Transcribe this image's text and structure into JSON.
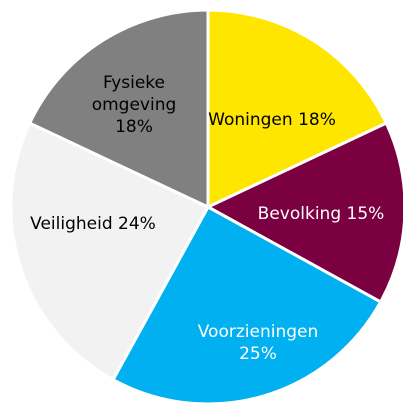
{
  "chart_data": {
    "type": "pie",
    "categories": [
      "Woningen",
      "Bevolking",
      "Voorzieningen",
      "Veiligheid",
      "Fysieke omgeving"
    ],
    "values": [
      18,
      15,
      25,
      24,
      18
    ],
    "value_labels": [
      "18%",
      "15%",
      "25%",
      "24%",
      "18%"
    ],
    "colors": [
      "#ffe600",
      "#7b0041",
      "#00b0f0",
      "#f2f2f2",
      "#808080"
    ]
  }
}
